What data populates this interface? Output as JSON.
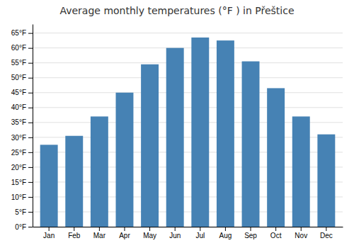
{
  "chart_data": {
    "type": "bar",
    "title": "Average monthly temperatures (°F ) in Přeštice",
    "categories": [
      "Jan",
      "Feb",
      "Mar",
      "Apr",
      "May",
      "Jun",
      "Jul",
      "Aug",
      "Sep",
      "Oct",
      "Nov",
      "Dec"
    ],
    "values": [
      27.5,
      30.5,
      37.0,
      45.0,
      54.5,
      60.0,
      63.5,
      62.5,
      55.5,
      46.5,
      37.0,
      31.0
    ],
    "ylim": [
      0,
      68
    ],
    "yticks": [
      {
        "value": 0,
        "label": "0°F"
      },
      {
        "value": 5,
        "label": "5°F"
      },
      {
        "value": 10,
        "label": "10°F"
      },
      {
        "value": 15,
        "label": "15°F"
      },
      {
        "value": 20,
        "label": "20°F"
      },
      {
        "value": 25,
        "label": "25°F"
      },
      {
        "value": 30,
        "label": "30°F"
      },
      {
        "value": 35,
        "label": "35°F"
      },
      {
        "value": 40,
        "label": "40°F"
      },
      {
        "value": 45,
        "label": "45°F"
      },
      {
        "value": 50,
        "label": "50°F"
      },
      {
        "value": 55,
        "label": "55°F"
      },
      {
        "value": 60,
        "label": "60°F"
      },
      {
        "value": 65,
        "label": "65°F"
      }
    ],
    "grid": true
  }
}
